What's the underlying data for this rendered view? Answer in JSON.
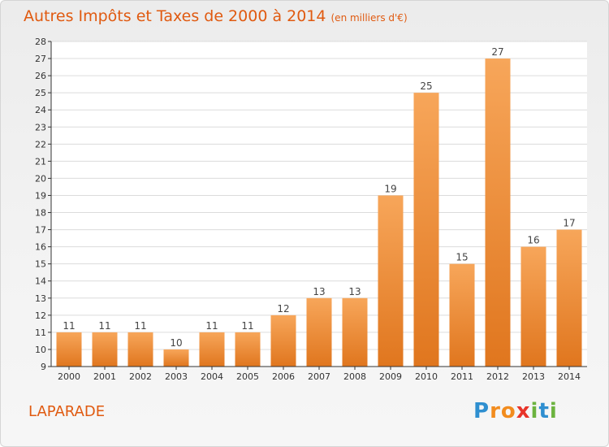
{
  "title": {
    "main": "Autres Impôts et Taxes de 2000 à 2014",
    "unit": "(en milliers d'€)"
  },
  "commune": "LAPARADE",
  "brand": {
    "name": "Proxiti",
    "letters": [
      "P",
      "r",
      "o",
      "x",
      "i",
      "t",
      "i"
    ],
    "letter_colors": [
      "#2f8fd0",
      "#f28c1e",
      "#f28c1e",
      "#e8342a",
      "#6cb33f",
      "#2f8fd0",
      "#6cb33f"
    ]
  },
  "colors": {
    "title": "#e05a10",
    "bar_top": "#f7a65a",
    "bar_bottom": "#e0761e",
    "axis": "#333333",
    "grid": "#dcdcdc"
  },
  "chart_data": {
    "type": "bar",
    "categories": [
      "2000",
      "2001",
      "2002",
      "2003",
      "2004",
      "2005",
      "2006",
      "2007",
      "2008",
      "2009",
      "2010",
      "2011",
      "2012",
      "2013",
      "2014"
    ],
    "values": [
      11,
      11,
      11,
      10,
      11,
      11,
      12,
      13,
      13,
      19,
      25,
      15,
      27,
      16,
      17
    ],
    "ylim": [
      9,
      28
    ],
    "yticks": [
      9,
      10,
      11,
      12,
      13,
      14,
      15,
      16,
      17,
      18,
      19,
      20,
      21,
      22,
      23,
      24,
      25,
      26,
      27,
      28
    ],
    "grid": true,
    "xlabel": "",
    "ylabel": ""
  }
}
